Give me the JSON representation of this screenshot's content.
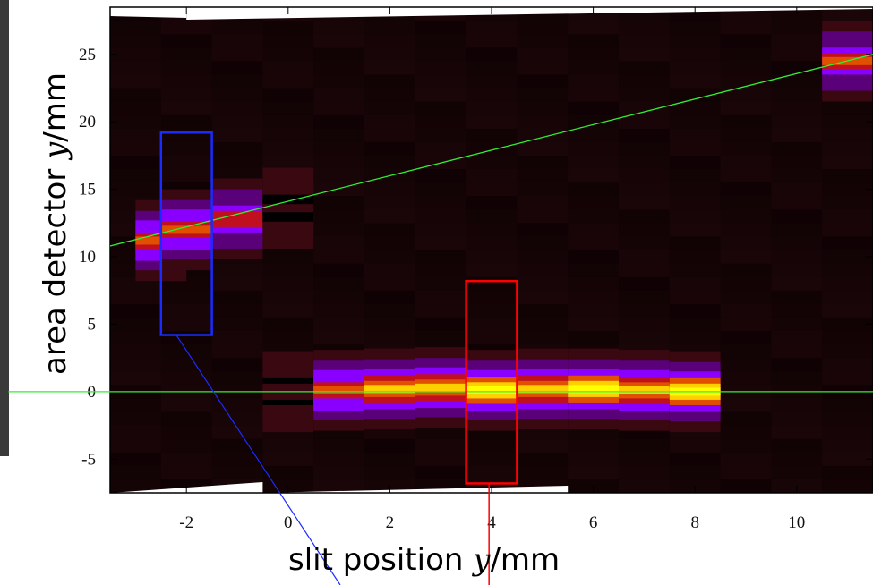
{
  "chart_data": {
    "type": "heatmap",
    "xlabel_parts": {
      "prefix": "slit position ",
      "var": "y",
      "suffix": "/mm"
    },
    "ylabel_parts": {
      "prefix": "area detector ",
      "var": "y",
      "suffix": "/mm"
    },
    "xlim": [
      -3.5,
      11.5
    ],
    "ylim": [
      -7.5,
      28.5
    ],
    "x_ticks": [
      -2,
      0,
      2,
      4,
      6,
      8,
      10
    ],
    "y_ticks": [
      -5,
      0,
      5,
      10,
      15,
      20,
      25
    ],
    "x_tick_labels": [
      "-2",
      "0",
      "2",
      "4",
      "6",
      "8",
      "10"
    ],
    "y_tick_labels": [
      "-5",
      "0",
      "5",
      "10",
      "15",
      "20",
      "25"
    ],
    "colormap": [
      "#000000",
      "#3a0810",
      "#5a0078",
      "#8a00ff",
      "#c01020",
      "#e05000",
      "#ffd000",
      "#ffff00"
    ],
    "columns": [
      {
        "x": -3.0,
        "peak_y": null,
        "intensity": 0
      },
      {
        "x": -2.5,
        "peak_y": 11.2,
        "intensity": 0.72
      },
      {
        "x": -2.0,
        "peak_y": 12.0,
        "intensity": 0.72
      },
      {
        "x": -1.0,
        "peak_y": 12.8,
        "intensity": 0.68
      },
      {
        "x": 0.0,
        "peak_y": 13.6,
        "intensity": 0.35
      },
      {
        "x": 0.0,
        "peak_y": 0.0,
        "intensity": 0.4
      },
      {
        "x": 1.0,
        "peak_y": 0.1,
        "intensity": 0.75
      },
      {
        "x": 2.0,
        "peak_y": 0.2,
        "intensity": 0.85
      },
      {
        "x": 3.0,
        "peak_y": 0.3,
        "intensity": 0.8
      },
      {
        "x": 4.0,
        "peak_y": 0.1,
        "intensity": 0.95
      },
      {
        "x": 5.0,
        "peak_y": 0.2,
        "intensity": 0.85
      },
      {
        "x": 6.0,
        "peak_y": 0.2,
        "intensity": 0.95
      },
      {
        "x": 7.0,
        "peak_y": 0.1,
        "intensity": 0.8
      },
      {
        "x": 8.0,
        "peak_y": 0.0,
        "intensity": 0.9
      },
      {
        "x": 11.0,
        "peak_y": 24.5,
        "intensity": 0.7
      }
    ],
    "overlays": [
      {
        "name": "green-fit-line",
        "color": "#33ee33",
        "points": [
          [
            -3.5,
            10.8
          ],
          [
            11.5,
            25.0
          ]
        ]
      },
      {
        "name": "green-zero-line",
        "color": "#33ee33",
        "points": [
          [
            -5.5,
            0.0
          ],
          [
            11.5,
            0.0
          ]
        ]
      }
    ],
    "boxes": [
      {
        "name": "blue-selection",
        "color": "#1a2bff",
        "x": [
          -2.5,
          -1.5
        ],
        "y": [
          4.2,
          19.2
        ]
      },
      {
        "name": "red-selection",
        "color": "#ff0000",
        "x": [
          3.5,
          4.5
        ],
        "y": [
          -6.8,
          8.2
        ]
      }
    ],
    "grid": false
  }
}
